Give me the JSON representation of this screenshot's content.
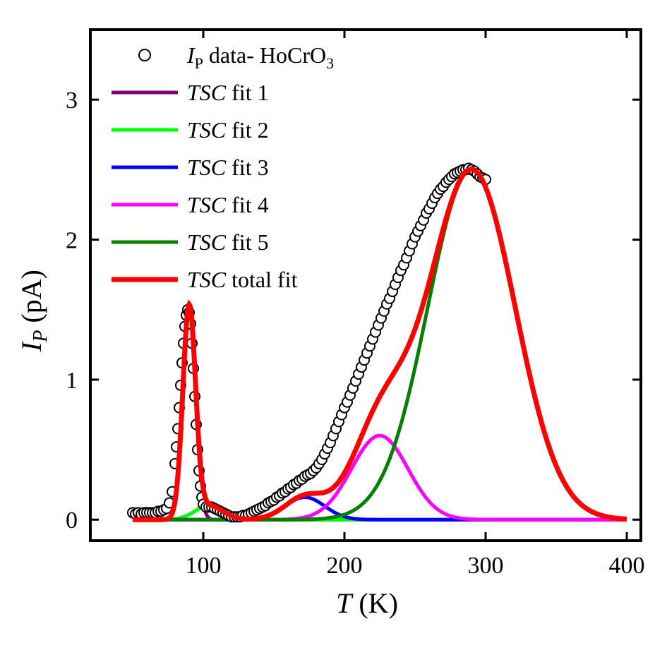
{
  "chart_data": {
    "type": "line",
    "title": "",
    "xlabel": {
      "italic": "T",
      "rest": " (K)"
    },
    "ylabel": {
      "italic": "I",
      "sub": "P",
      "rest": " (pA)"
    },
    "xlim": [
      20,
      410
    ],
    "ylim": [
      -0.15,
      3.5
    ],
    "xticks": [
      100,
      200,
      300,
      400
    ],
    "yticks": [
      0,
      1,
      2,
      3
    ],
    "xtick_labels": [
      "100",
      "200",
      "300",
      "400"
    ],
    "ytick_labels": [
      "0",
      "1",
      "2",
      "3"
    ],
    "legend_position": "top-left",
    "legend": [
      {
        "key": "data",
        "marker": "circle",
        "pre": "I",
        "sub": "P",
        "mid": " data- HoCrO",
        "sub2": "3"
      },
      {
        "key": "fit1",
        "color": "#800080",
        "italic": "TSC",
        "rest": " fit 1"
      },
      {
        "key": "fit2",
        "color": "#00ff00",
        "italic": "TSC",
        "rest": " fit 2"
      },
      {
        "key": "fit3",
        "color": "#0000ff",
        "italic": "TSC",
        "rest": " fit 3"
      },
      {
        "key": "fit4",
        "color": "#ff00ff",
        "italic": "TSC",
        "rest": " fit 4"
      },
      {
        "key": "fit5",
        "color": "#008000",
        "italic": "TSC",
        "rest": " fit 5"
      },
      {
        "key": "total",
        "color": "#ff0000",
        "italic": "TSC",
        "rest": " total fit"
      }
    ],
    "fits": [
      {
        "key": "fit1",
        "name": "TSC fit 1",
        "color": "#800080",
        "center": 90,
        "amplitude": 1.5,
        "sigma": 4.5
      },
      {
        "key": "fit2",
        "name": "TSC fit 2",
        "color": "#00ff00",
        "center": 104,
        "amplitude": 0.1,
        "sigma": 10
      },
      {
        "key": "fit3",
        "name": "TSC fit 3",
        "color": "#0000ff",
        "center": 172,
        "amplitude": 0.16,
        "sigma": 14
      },
      {
        "key": "fit4",
        "name": "TSC fit 4",
        "color": "#ff00ff",
        "center": 225,
        "amplitude": 0.6,
        "sigma": 20
      },
      {
        "key": "fit5",
        "name": "TSC fit 5",
        "color": "#008000",
        "center": 290,
        "amplitude": 2.5,
        "sigma": 31
      }
    ],
    "fit_range": [
      50,
      400
    ],
    "data_points": {
      "name": "IP data- HoCrO3",
      "x": [
        50,
        52,
        54,
        56,
        58,
        60,
        62,
        64,
        66,
        68,
        70,
        72,
        74,
        76,
        78,
        80,
        81,
        82,
        83,
        84,
        85,
        86,
        87,
        88,
        89,
        90,
        91,
        92,
        93,
        94,
        95,
        96,
        97,
        98,
        99,
        100,
        102,
        104,
        106,
        108,
        110,
        112,
        114,
        116,
        118,
        120,
        122,
        124,
        126,
        128,
        130,
        132,
        134,
        136,
        138,
        140,
        142,
        144,
        146,
        148,
        150,
        152,
        154,
        156,
        158,
        160,
        162,
        164,
        166,
        168,
        170,
        172,
        174,
        176,
        178,
        180,
        182,
        184,
        186,
        188,
        190,
        192,
        194,
        196,
        198,
        200,
        202,
        204,
        206,
        208,
        210,
        212,
        214,
        216,
        218,
        220,
        222,
        224,
        226,
        228,
        230,
        232,
        234,
        236,
        238,
        240,
        242,
        244,
        246,
        248,
        250,
        252,
        254,
        256,
        258,
        260,
        262,
        264,
        266,
        268,
        270,
        272,
        274,
        276,
        278,
        280,
        282,
        284,
        286,
        288,
        290,
        292,
        294,
        296,
        298,
        300
      ],
      "y": [
        0.05,
        0.04,
        0.05,
        0.04,
        0.05,
        0.05,
        0.05,
        0.05,
        0.05,
        0.06,
        0.06,
        0.07,
        0.08,
        0.12,
        0.2,
        0.4,
        0.52,
        0.65,
        0.8,
        0.96,
        1.12,
        1.26,
        1.38,
        1.46,
        1.5,
        1.48,
        1.4,
        1.26,
        1.08,
        0.88,
        0.68,
        0.5,
        0.35,
        0.24,
        0.16,
        0.11,
        0.09,
        0.09,
        0.09,
        0.08,
        0.07,
        0.06,
        0.05,
        0.04,
        0.03,
        0.02,
        0.02,
        0.02,
        0.02,
        0.03,
        0.03,
        0.04,
        0.05,
        0.06,
        0.07,
        0.08,
        0.09,
        0.1,
        0.12,
        0.13,
        0.14,
        0.16,
        0.17,
        0.19,
        0.2,
        0.22,
        0.23,
        0.25,
        0.26,
        0.28,
        0.29,
        0.31,
        0.32,
        0.33,
        0.35,
        0.37,
        0.4,
        0.43,
        0.47,
        0.51,
        0.55,
        0.6,
        0.65,
        0.7,
        0.75,
        0.8,
        0.84,
        0.89,
        0.94,
        0.99,
        1.04,
        1.09,
        1.14,
        1.19,
        1.24,
        1.29,
        1.34,
        1.39,
        1.44,
        1.49,
        1.54,
        1.58,
        1.63,
        1.68,
        1.73,
        1.78,
        1.82,
        1.87,
        1.92,
        1.97,
        2.02,
        2.06,
        2.1,
        2.14,
        2.19,
        2.22,
        2.26,
        2.3,
        2.33,
        2.36,
        2.38,
        2.41,
        2.43,
        2.45,
        2.47,
        2.48,
        2.49,
        2.5,
        2.5,
        2.51,
        2.5,
        2.49,
        2.47,
        2.45,
        2.44,
        2.43
      ]
    }
  }
}
